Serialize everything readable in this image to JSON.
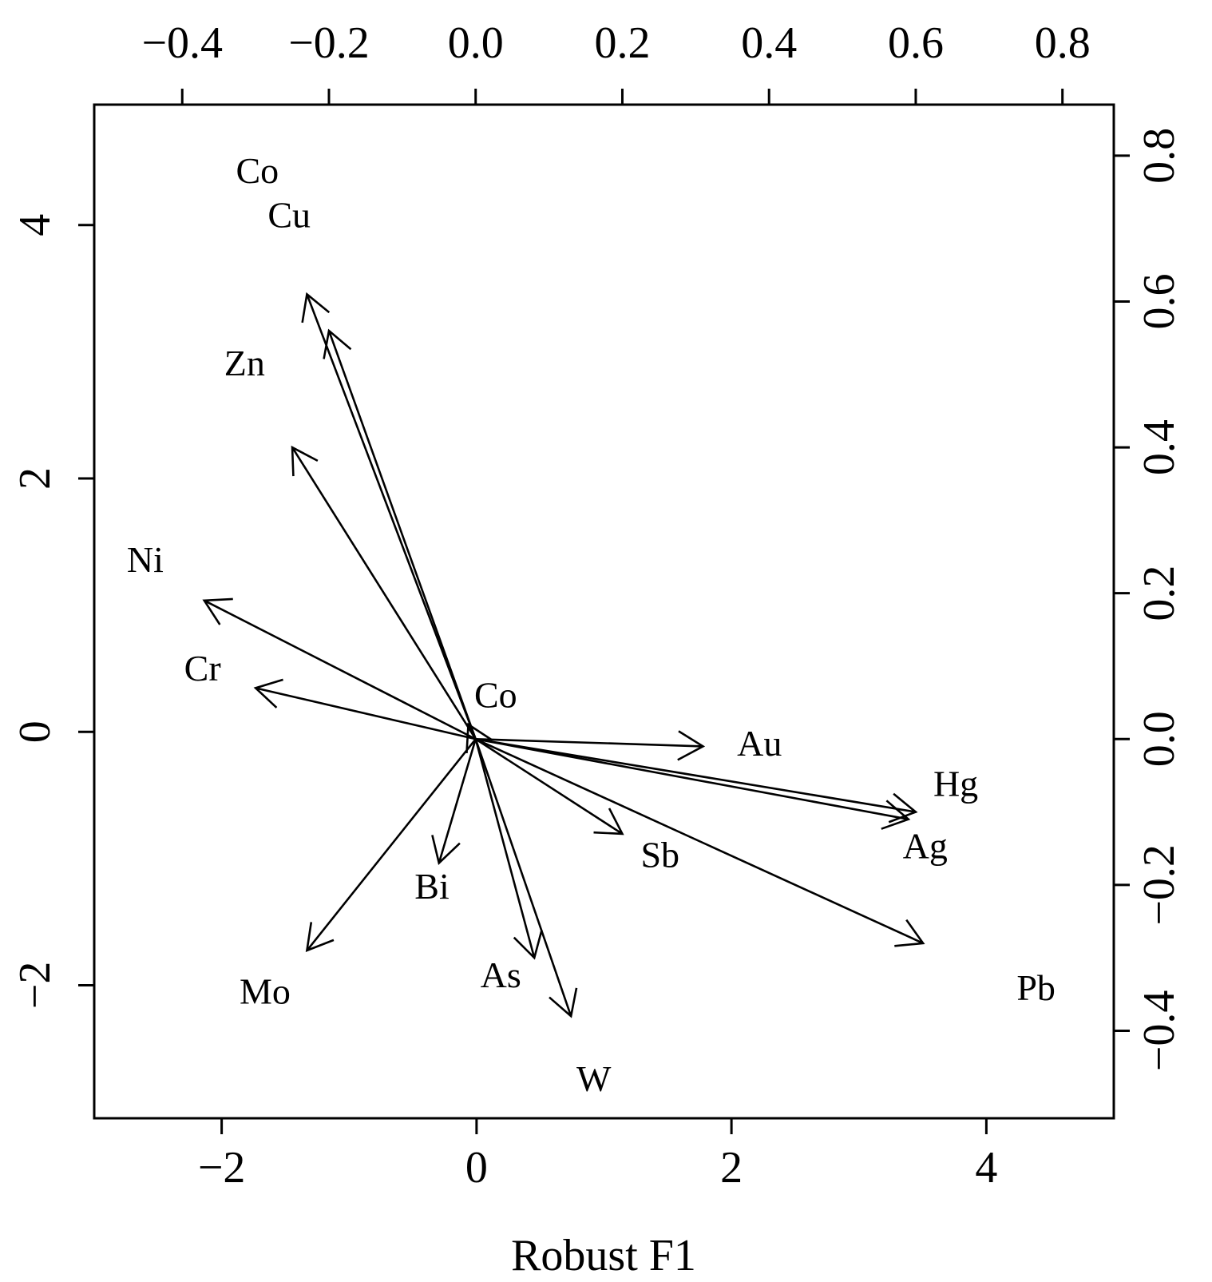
{
  "chart_data": {
    "type": "scatter",
    "subtype": "biplot",
    "title": "",
    "xlabel": "Robust F1",
    "ylabel": "",
    "xlim": [
      -3.0,
      5.0
    ],
    "ylim": [
      -3.05,
      4.95
    ],
    "xticks": [
      -2,
      0,
      2,
      4
    ],
    "xtick_labels": [
      "−2",
      "0",
      "2",
      "4"
    ],
    "yticks": [
      -2,
      0,
      2,
      4
    ],
    "ytick_labels": [
      "−2",
      "0",
      "2",
      "4"
    ],
    "top_axis": {
      "lim": [
        -0.52,
        0.87
      ],
      "ticks": [
        -0.4,
        -0.2,
        0.0,
        0.2,
        0.4,
        0.6,
        0.8
      ],
      "tick_labels": [
        "−0.4",
        "−0.2",
        "0.0",
        "0.2",
        "0.4",
        "0.6",
        "0.8"
      ]
    },
    "right_axis": {
      "lim": [
        -0.52,
        0.87
      ],
      "ticks": [
        -0.4,
        -0.2,
        0.0,
        0.2,
        0.4,
        0.6,
        0.8
      ],
      "tick_labels": [
        "−0.4",
        "−0.2",
        "0.0",
        "0.2",
        "0.4",
        "0.6",
        "0.8"
      ]
    },
    "grid": false,
    "legend": "none",
    "scores": [
      {
        "label": "Co",
        "x": -1.72,
        "y": 4.4
      },
      {
        "label": "Cu",
        "x": -1.47,
        "y": 4.05
      },
      {
        "label": "Zn",
        "x": -1.82,
        "y": 2.88
      },
      {
        "label": "Ni",
        "x": -2.6,
        "y": 1.33
      },
      {
        "label": "Cr",
        "x": -2.15,
        "y": 0.47
      },
      {
        "label": "Co",
        "x": 0.15,
        "y": 0.26
      },
      {
        "label": "Au",
        "x": 2.22,
        "y": -0.12
      },
      {
        "label": "Hg",
        "x": 3.76,
        "y": -0.44
      },
      {
        "label": "Ag",
        "x": 3.52,
        "y": -0.93
      },
      {
        "label": "Sb",
        "x": 1.44,
        "y": -1.0
      },
      {
        "label": "Bi",
        "x": -0.35,
        "y": -1.25
      },
      {
        "label": "Pb",
        "x": 4.39,
        "y": -2.05
      },
      {
        "label": "Mo",
        "x": -1.66,
        "y": -2.08
      },
      {
        "label": "As",
        "x": 0.19,
        "y": -1.95
      },
      {
        "label": "W",
        "x": 0.92,
        "y": -2.77
      }
    ],
    "loadings": [
      {
        "x": -0.23,
        "y": 0.61
      },
      {
        "x": -0.2,
        "y": 0.56
      },
      {
        "x": -0.25,
        "y": 0.4
      },
      {
        "x": -0.37,
        "y": 0.19
      },
      {
        "x": -0.3,
        "y": 0.07
      },
      {
        "x": -0.01,
        "y": 0.02
      },
      {
        "x": 0.31,
        "y": -0.01
      },
      {
        "x": 0.6,
        "y": -0.1
      },
      {
        "x": 0.59,
        "y": -0.11
      },
      {
        "x": 0.2,
        "y": -0.13
      },
      {
        "x": -0.05,
        "y": -0.17
      },
      {
        "x": 0.61,
        "y": -0.28
      },
      {
        "x": -0.23,
        "y": -0.29
      },
      {
        "x": 0.08,
        "y": -0.3
      },
      {
        "x": 0.13,
        "y": -0.38
      }
    ]
  }
}
